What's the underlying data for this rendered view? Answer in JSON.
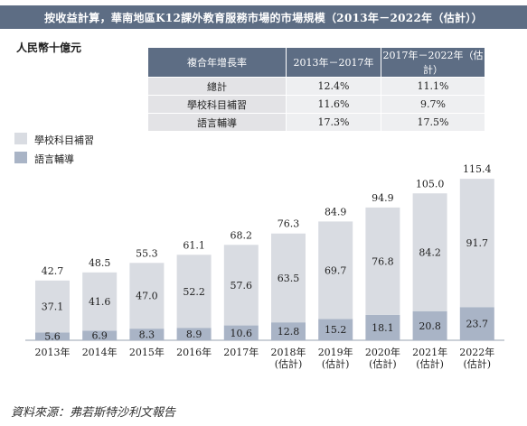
{
  "title": "按收益計算，華南地區K12課外教育服務市場的市場規模（2013年－2022年（估計））",
  "unit": "人民幣十億元",
  "cagr_table": {
    "headers": [
      "複合年增長率",
      "2013年－2017年",
      "2017年－2022年（估計）"
    ],
    "rows": [
      [
        "總計",
        "12.4%",
        "11.1%"
      ],
      [
        "學校科目補習",
        "11.6%",
        "9.7%"
      ],
      [
        "語言輔導",
        "17.3%",
        "17.5%"
      ]
    ]
  },
  "legend": [
    {
      "label": "學校科目補習",
      "color": "#d9dce2"
    },
    {
      "label": "語言輔導",
      "color": "#a9b4c6"
    }
  ],
  "source": "資料來源：弗若斯特沙利文報告",
  "chart_data": {
    "type": "bar",
    "stacked": true,
    "categories": [
      "2013年",
      "2014年",
      "2015年",
      "2016年",
      "2017年",
      "2018年\n(估計)",
      "2019年\n(估計)",
      "2020年\n(估計)",
      "2021年\n(估計)",
      "2022年\n(估計)"
    ],
    "series": [
      {
        "name": "語言輔導",
        "values": [
          5.6,
          6.9,
          8.3,
          8.9,
          10.6,
          12.8,
          15.2,
          18.1,
          20.8,
          23.7
        ],
        "color": "#a9b4c6"
      },
      {
        "name": "學校科目補習",
        "values": [
          37.1,
          41.6,
          47.0,
          52.2,
          57.6,
          63.5,
          69.7,
          76.8,
          84.2,
          91.7
        ],
        "color": "#d9dce2"
      }
    ],
    "totals": [
      42.7,
      48.5,
      55.3,
      61.1,
      68.2,
      76.3,
      84.9,
      94.9,
      105.0,
      115.4
    ],
    "grid": false
  }
}
